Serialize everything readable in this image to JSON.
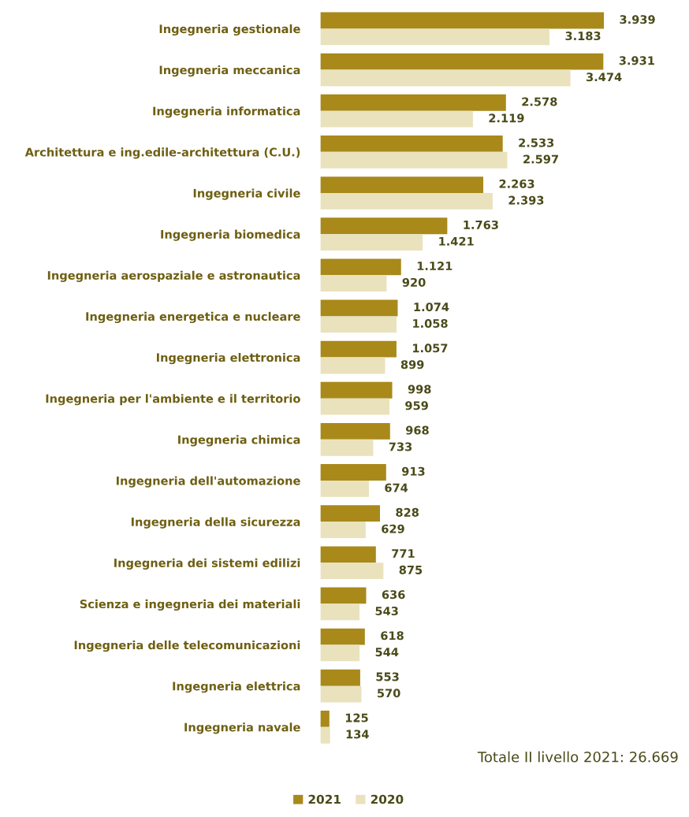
{
  "chart_data": {
    "type": "bar",
    "orientation": "horizontal",
    "categories": [
      "Ingegneria gestionale",
      "Ingegneria meccanica",
      "Ingegneria informatica",
      "Architettura e ing.edile-architettura (C.U.)",
      "Ingegneria civile",
      "Ingegneria biomedica",
      "Ingegneria aerospaziale e astronautica",
      "Ingegneria energetica e nucleare",
      "Ingegneria elettronica",
      "Ingegneria per l'ambiente e il territorio",
      "Ingegneria chimica",
      "Ingegneria dell'automazione",
      "Ingegneria della sicurezza",
      "Ingegneria dei sistemi edilizi",
      "Scienza e ingegneria dei materiali",
      "Ingegneria delle telecomunicazioni",
      "Ingegneria elettrica",
      "Ingegneria navale"
    ],
    "series": [
      {
        "name": "2021",
        "color": "#a8891a",
        "values": [
          3939,
          3931,
          2578,
          2533,
          2263,
          1763,
          1121,
          1074,
          1057,
          998,
          968,
          913,
          828,
          771,
          636,
          618,
          553,
          125
        ],
        "value_labels": [
          "3.939",
          "3.931",
          "2.578",
          "2.533",
          "2.263",
          "1.763",
          "1.121",
          "1.074",
          "1.057",
          "998",
          "968",
          "913",
          "828",
          "771",
          "636",
          "618",
          "553",
          "125"
        ]
      },
      {
        "name": "2020",
        "color": "#e9e2bd",
        "values": [
          3183,
          3474,
          2119,
          2597,
          2393,
          1421,
          920,
          1058,
          899,
          959,
          733,
          674,
          629,
          875,
          543,
          544,
          570,
          134
        ],
        "value_labels": [
          "3.183",
          "3.474",
          "2.119",
          "2.597",
          "2.393",
          "1.421",
          "920",
          "1.058",
          "899",
          "959",
          "733",
          "674",
          "629",
          "875",
          "543",
          "544",
          "570",
          "134"
        ]
      }
    ],
    "annotations": [
      "Totale II livello 2021: 26.669"
    ],
    "legend": "bottom",
    "grid": false
  }
}
